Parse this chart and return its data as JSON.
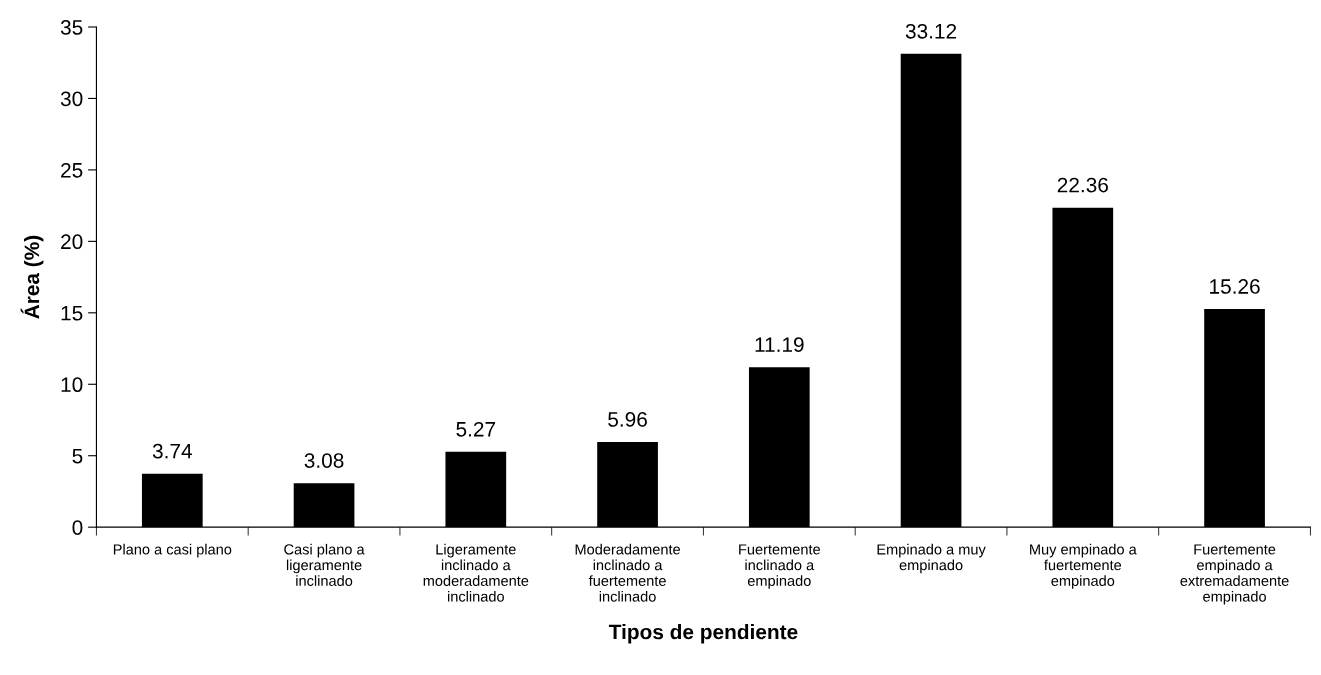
{
  "chart_data": {
    "type": "bar",
    "xlabel": "Tipos de pendiente",
    "ylabel": "Área (%)",
    "categories": [
      "Plano a casi plano",
      "Casi plano a\nligeramente\ninclinado",
      "Ligeramente\ninclinado a\nmoderadamente\ninclinado",
      "Moderadamente\ninclinado a\nfuertemente\ninclinado",
      "Fuertemente\ninclinado a\nempinado",
      "Empinado a muy\nempinado",
      "Muy empinado a\nfuertemente\nempinado",
      "Fuertemente\nempinado a\nextremadamente\nempinado"
    ],
    "values": [
      3.74,
      3.08,
      5.27,
      5.96,
      11.19,
      33.12,
      22.36,
      15.26
    ],
    "color": "#000000",
    "ylim": [
      0,
      35
    ],
    "yticks": [
      0,
      5,
      10,
      15,
      20,
      25,
      30,
      35
    ],
    "data_labels": true,
    "grid": false,
    "legend": false
  }
}
